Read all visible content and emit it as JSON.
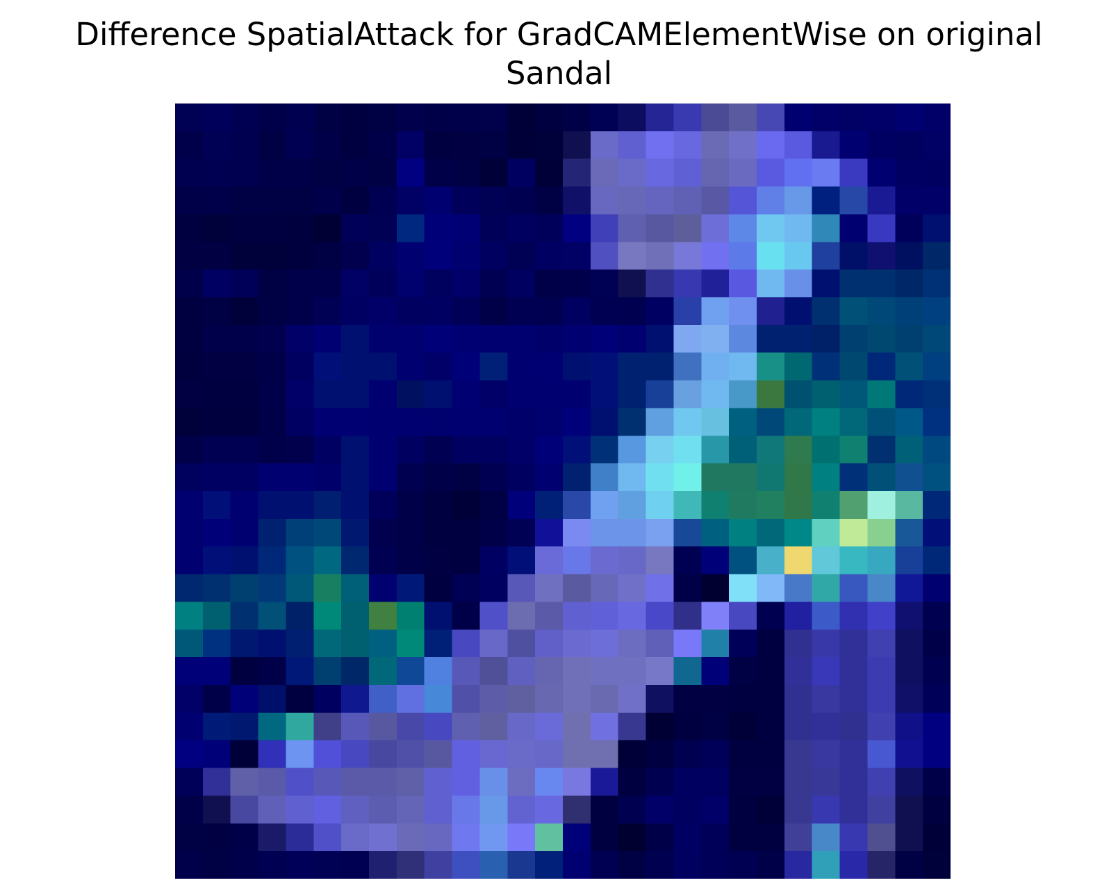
{
  "chart_data": {
    "type": "heatmap",
    "title": "Difference SpatialAttack for GradCAMElementWise on original\nSandal",
    "title_lines": [
      "Difference SpatialAttack for GradCAMElementWise on original",
      "Sandal"
    ],
    "xlabel": "",
    "ylabel": "",
    "axes_visible": false,
    "grid": false,
    "rows": 28,
    "cols": 28,
    "colors": [
      [
        "#000055",
        "#00005a",
        "#000052",
        "#00004a",
        "#000050",
        "#000045",
        "#000040",
        "#000045",
        "#00004d",
        "#000048",
        "#00004a",
        "#00004b",
        "#000038",
        "#000040",
        "#000046",
        "#000055",
        "#0d0d60",
        "#252595",
        "#3a3ab0",
        "#4a4a95",
        "#5a5aa0",
        "#4848b5",
        "#000070",
        "#000068",
        "#000065",
        "#000068",
        "#000070",
        "#000068"
      ],
      [
        "#00004a",
        "#000055",
        "#000050",
        "#000045",
        "#000052",
        "#000048",
        "#000040",
        "#000048",
        "#000065",
        "#000040",
        "#000042",
        "#000045",
        "#000038",
        "#00003a",
        "#101050",
        "#6a6ac8",
        "#6060d0",
        "#7070f0",
        "#6868e0",
        "#6a6ab5",
        "#7070c8",
        "#6a6af0",
        "#5a5ae0",
        "#1a1a90",
        "#000070",
        "#000062",
        "#00005e",
        "#000065"
      ],
      [
        "#000050",
        "#000052",
        "#000050",
        "#000048",
        "#000048",
        "#000045",
        "#000048",
        "#000045",
        "#000080",
        "#000048",
        "#000045",
        "#000038",
        "#000060",
        "#000038",
        "#252575",
        "#6a6ab8",
        "#6a6ac8",
        "#6868e0",
        "#6060d5",
        "#6565b0",
        "#6a6ac0",
        "#5a5ae0",
        "#6070f0",
        "#6a7af0",
        "#3a3ac0",
        "#000070",
        "#000062",
        "#000060"
      ],
      [
        "#000048",
        "#00004a",
        "#000045",
        "#000045",
        "#000045",
        "#00004a",
        "#000040",
        "#000052",
        "#000065",
        "#000070",
        "#00005a",
        "#000055",
        "#000050",
        "#000045",
        "#101068",
        "#6868c0",
        "#6868b8",
        "#6565c0",
        "#6060b5",
        "#5858a5",
        "#5555d8",
        "#6080e8",
        "#6898e8",
        "#002080",
        "#2848a8",
        "#1a1a95",
        "#000068",
        "#000068"
      ],
      [
        "#000040",
        "#00003a",
        "#000040",
        "#000040",
        "#00003e",
        "#000035",
        "#000058",
        "#000055",
        "#002880",
        "#000078",
        "#000075",
        "#000058",
        "#000060",
        "#00005a",
        "#000080",
        "#4040b8",
        "#6060b0",
        "#5858a0",
        "#5e5e9a",
        "#6e6ed8",
        "#5e88e8",
        "#70c8f0",
        "#70b8f0",
        "#3088b8",
        "#000070",
        "#3838c0",
        "#00005a",
        "#001070"
      ],
      [
        "#000042",
        "#000042",
        "#00003a",
        "#00003a",
        "#00003e",
        "#000045",
        "#00004e",
        "#000060",
        "#000070",
        "#00007a",
        "#000070",
        "#000060",
        "#000055",
        "#000062",
        "#000065",
        "#5050c0",
        "#7878c0",
        "#7070b8",
        "#7878d8",
        "#7070f0",
        "#5c7ae8",
        "#68e0f0",
        "#68c8f0",
        "#2040a0",
        "#001068",
        "#101070",
        "#001060",
        "#002868"
      ],
      [
        "#00004a",
        "#000062",
        "#000058",
        "#000045",
        "#00004a",
        "#00004a",
        "#000065",
        "#00005a",
        "#00006e",
        "#00005e",
        "#000068",
        "#000052",
        "#000060",
        "#000048",
        "#00004a",
        "#000055",
        "#101050",
        "#303090",
        "#3838b0",
        "#202098",
        "#5858e0",
        "#70b8f0",
        "#6890e8",
        "#001070",
        "#003070",
        "#003070",
        "#002868",
        "#003075"
      ],
      [
        "#000040",
        "#000045",
        "#00003a",
        "#000045",
        "#00004a",
        "#000055",
        "#000062",
        "#000068",
        "#000060",
        "#000062",
        "#000058",
        "#000048",
        "#000052",
        "#000050",
        "#000060",
        "#000052",
        "#000050",
        "#000062",
        "#2840a8",
        "#70a0f0",
        "#7090f0",
        "#202090",
        "#000f70",
        "#003070",
        "#005078",
        "#004878",
        "#004078",
        "#004080"
      ],
      [
        "#000040",
        "#00004a",
        "#00004a",
        "#00004e",
        "#000068",
        "#000072",
        "#001070",
        "#00006e",
        "#000070",
        "#000078",
        "#000072",
        "#000070",
        "#000070",
        "#00006a",
        "#000070",
        "#000078",
        "#000070",
        "#001070",
        "#80a8f0",
        "#80b0f0",
        "#5c88e0",
        "#002070",
        "#002070",
        "#002068",
        "#004070",
        "#004870",
        "#004070",
        "#004878"
      ],
      [
        "#00003e",
        "#000042",
        "#000042",
        "#000048",
        "#000060",
        "#001078",
        "#001070",
        "#001070",
        "#000070",
        "#000068",
        "#000078",
        "#002078",
        "#000070",
        "#000072",
        "#001070",
        "#001078",
        "#002070",
        "#002070",
        "#4070c0",
        "#70b0f0",
        "#70b8f0",
        "#189088",
        "#006870",
        "#003078",
        "#004870",
        "#002878",
        "#005078",
        "#004080"
      ],
      [
        "#000042",
        "#000040",
        "#000040",
        "#00004a",
        "#000068",
        "#001070",
        "#001070",
        "#000070",
        "#001060",
        "#001070",
        "#000072",
        "#000068",
        "#000070",
        "#000070",
        "#000070",
        "#001078",
        "#002070",
        "#184098",
        "#68a0e0",
        "#70b8f0",
        "#4898c8",
        "#3a7840",
        "#005070",
        "#006070",
        "#005878",
        "#007878",
        "#002878",
        "#003078"
      ],
      [
        "#00003a",
        "#00003e",
        "#00003e",
        "#000048",
        "#000062",
        "#000072",
        "#000072",
        "#000070",
        "#000070",
        "#00006e",
        "#000070",
        "#000070",
        "#00006a",
        "#00006e",
        "#00007a",
        "#001070",
        "#003070",
        "#60a0e0",
        "#70c8f0",
        "#68c0e0",
        "#006080",
        "#004878",
        "#006878",
        "#008080",
        "#006878",
        "#005078",
        "#005888",
        "#003080"
      ],
      [
        "#000048",
        "#000052",
        "#000052",
        "#00004a",
        "#00004c",
        "#000062",
        "#001070",
        "#000070",
        "#000060",
        "#000052",
        "#000060",
        "#000060",
        "#000068",
        "#000078",
        "#001078",
        "#003078",
        "#5898e0",
        "#78d0f0",
        "#70e0f0",
        "#2898a8",
        "#006078",
        "#107878",
        "#307a50",
        "#007070",
        "#108070",
        "#003070",
        "#006078",
        "#004880"
      ],
      [
        "#00005e",
        "#000062",
        "#000062",
        "#000070",
        "#000070",
        "#00006a",
        "#001070",
        "#000070",
        "#000050",
        "#000048",
        "#000045",
        "#000052",
        "#000060",
        "#000070",
        "#002070",
        "#4080c8",
        "#70b8f0",
        "#70e0f0",
        "#70f0e8",
        "#207860",
        "#207860",
        "#107870",
        "#307848",
        "#008080",
        "#003078",
        "#005078",
        "#105090",
        "#005080"
      ],
      [
        "#000070",
        "#001078",
        "#000070",
        "#001070",
        "#001070",
        "#001f70",
        "#001070",
        "#00005a",
        "#000048",
        "#000040",
        "#000038",
        "#000045",
        "#00007a",
        "#002078",
        "#2a48a8",
        "#70a0f0",
        "#60a0e0",
        "#70d0f0",
        "#40b8b8",
        "#108070",
        "#207a60",
        "#208060",
        "#30784a",
        "#108070",
        "#50a070",
        "#a0f0e0",
        "#58b8a0",
        "#002878"
      ],
      [
        "#000070",
        "#000078",
        "#000070",
        "#002070",
        "#004078",
        "#004878",
        "#001870",
        "#00004e",
        "#000048",
        "#000040",
        "#000040",
        "#000048",
        "#000055",
        "#101098",
        "#7a8af0",
        "#6c94e8",
        "#6c94e8",
        "#7aa0f0",
        "#184898",
        "#006080",
        "#008080",
        "#006878",
        "#008888",
        "#60d0c0",
        "#c0ea98",
        "#88d090",
        "#185898",
        "#001078"
      ],
      [
        "#000070",
        "#001078",
        "#001070",
        "#002878",
        "#005080",
        "#006880",
        "#002870",
        "#000052",
        "#000048",
        "#000042",
        "#000040",
        "#000062",
        "#001078",
        "#6a6ad8",
        "#6878e8",
        "#6a6ad0",
        "#6868c8",
        "#7878c0",
        "#000052",
        "#000078",
        "#005080",
        "#48b0c8",
        "#f0d870",
        "#60c8d8",
        "#38b8c0",
        "#38a8c0",
        "#184098",
        "#002878"
      ],
      [
        "#002870",
        "#003070",
        "#004070",
        "#003878",
        "#005878",
        "#188060",
        "#006078",
        "#000070",
        "#001878",
        "#000040",
        "#000055",
        "#000060",
        "#5858b8",
        "#7070c0",
        "#5a5aa0",
        "#6868b8",
        "#7070c8",
        "#7070e8",
        "#000048",
        "#000030",
        "#80e0f8",
        "#80b8f8",
        "#4878c8",
        "#30a8a8",
        "#3858c0",
        "#4888c8",
        "#101898",
        "#000070"
      ],
      [
        "#008080",
        "#006070",
        "#003070",
        "#005078",
        "#002068",
        "#008878",
        "#006070",
        "#408040",
        "#008070",
        "#001070",
        "#000048",
        "#5050c8",
        "#6c6cb0",
        "#5a5aa8",
        "#6060d0",
        "#6060d8",
        "#6868e0",
        "#4848c8",
        "#30308a",
        "#8080f8",
        "#4848c0",
        "#000050",
        "#2020a0",
        "#3c5ac8",
        "#3030b0",
        "#4040c8",
        "#101070",
        "#000050"
      ],
      [
        "#005878",
        "#003080",
        "#001870",
        "#001070",
        "#001f70",
        "#006878",
        "#006070",
        "#006080",
        "#008878",
        "#002078",
        "#4848c0",
        "#6868c8",
        "#5050a0",
        "#6060c8",
        "#6a6ad0",
        "#6e6ed8",
        "#6c6cc0",
        "#6060b8",
        "#7878f8",
        "#2080a8",
        "#000058",
        "#000040",
        "#303090",
        "#3838a8",
        "#303098",
        "#4040b0",
        "#101060",
        "#000048"
      ],
      [
        "#000078",
        "#000078",
        "#000040",
        "#000048",
        "#001878",
        "#004070",
        "#002868",
        "#006878",
        "#104898",
        "#5080e0",
        "#5858b8",
        "#505098",
        "#6060c0",
        "#6565b0",
        "#7070b8",
        "#7070c0",
        "#7070c0",
        "#7878c8",
        "#106890",
        "#000078",
        "#000045",
        "#000040",
        "#303098",
        "#3838b8",
        "#303098",
        "#3c3cb0",
        "#101060",
        "#000050"
      ],
      [
        "#000068",
        "#000048",
        "#000078",
        "#00106a",
        "#000040",
        "#000060",
        "#101890",
        "#4060c8",
        "#6070e0",
        "#4888d8",
        "#5050a8",
        "#5c5ca8",
        "#6060a0",
        "#6868b0",
        "#7070b8",
        "#6a6ab0",
        "#7070c8",
        "#101060",
        "#000042",
        "#000042",
        "#000040",
        "#000040",
        "#303090",
        "#3838a0",
        "#303098",
        "#3c3cb0",
        "#101068",
        "#000058"
      ],
      [
        "#000070",
        "#001a78",
        "#001870",
        "#006880",
        "#30a8a0",
        "#404088",
        "#5858b8",
        "#5858a0",
        "#4848a8",
        "#4848c0",
        "#6060b0",
        "#6060a0",
        "#6868c8",
        "#6a6ad8",
        "#7070b0",
        "#7070e0",
        "#383890",
        "#000035",
        "#000040",
        "#000045",
        "#000038",
        "#000040",
        "#303090",
        "#303098",
        "#303090",
        "#4040b0",
        "#101088",
        "#000080"
      ],
      [
        "#000080",
        "#000078",
        "#000038",
        "#3030b8",
        "#6c94f0",
        "#5050d8",
        "#4848c0",
        "#4848a0",
        "#5050a8",
        "#5858a0",
        "#6060e0",
        "#6868d0",
        "#6a6ac8",
        "#6868c8",
        "#7070b0",
        "#7070b0",
        "#000038",
        "#000040",
        "#000050",
        "#000058",
        "#000040",
        "#000040",
        "#383890",
        "#3838a0",
        "#303098",
        "#4858d0",
        "#101090",
        "#000080"
      ],
      [
        "#000058",
        "#303098",
        "#6060a8",
        "#5a5aa8",
        "#5050c8",
        "#5858b8",
        "#5a5aa8",
        "#5a5aa8",
        "#6060a8",
        "#6060d0",
        "#6060e0",
        "#6890e8",
        "#6c6cc0",
        "#6888f0",
        "#7878e0",
        "#1a1a98",
        "#000040",
        "#000050",
        "#000060",
        "#000060",
        "#000042",
        "#000042",
        "#383890",
        "#383898",
        "#303098",
        "#4040b0",
        "#101060",
        "#000048"
      ],
      [
        "#000048",
        "#101050",
        "#4848a0",
        "#6060b8",
        "#6060d0",
        "#6060e0",
        "#6060c0",
        "#5c5cb0",
        "#6565b8",
        "#6060d0",
        "#6878e8",
        "#6898e8",
        "#6262d0",
        "#6868e0",
        "#303070",
        "#000040",
        "#000050",
        "#000068",
        "#000060",
        "#000068",
        "#000040",
        "#000038",
        "#383890",
        "#3838b0",
        "#303098",
        "#4040a0",
        "#101050",
        "#000040"
      ],
      [
        "#000045",
        "#000042",
        "#000048",
        "#1a1a68",
        "#2c2c98",
        "#5050c8",
        "#6a6ac8",
        "#7070d0",
        "#6a6ab8",
        "#6868c0",
        "#7078f0",
        "#7098f0",
        "#7878f8",
        "#60c0a0",
        "#000078",
        "#000040",
        "#000030",
        "#000048",
        "#000062",
        "#000058",
        "#000040",
        "#000040",
        "#404098",
        "#4888c8",
        "#3838b0",
        "#505090",
        "#101050",
        "#000038"
      ],
      [
        "#00004a",
        "#000045",
        "#00004a",
        "#000052",
        "#000058",
        "#000055",
        "#000052",
        "#202070",
        "#303078",
        "#4040a0",
        "#3e50c0",
        "#2a60b0",
        "#1a3890",
        "#00207a",
        "#000070",
        "#000052",
        "#000045",
        "#000050",
        "#000060",
        "#000058",
        "#000052",
        "#000048",
        "#2828a0",
        "#30a0b8",
        "#2828a8",
        "#252568",
        "#000045",
        "#00003a"
      ]
    ]
  }
}
